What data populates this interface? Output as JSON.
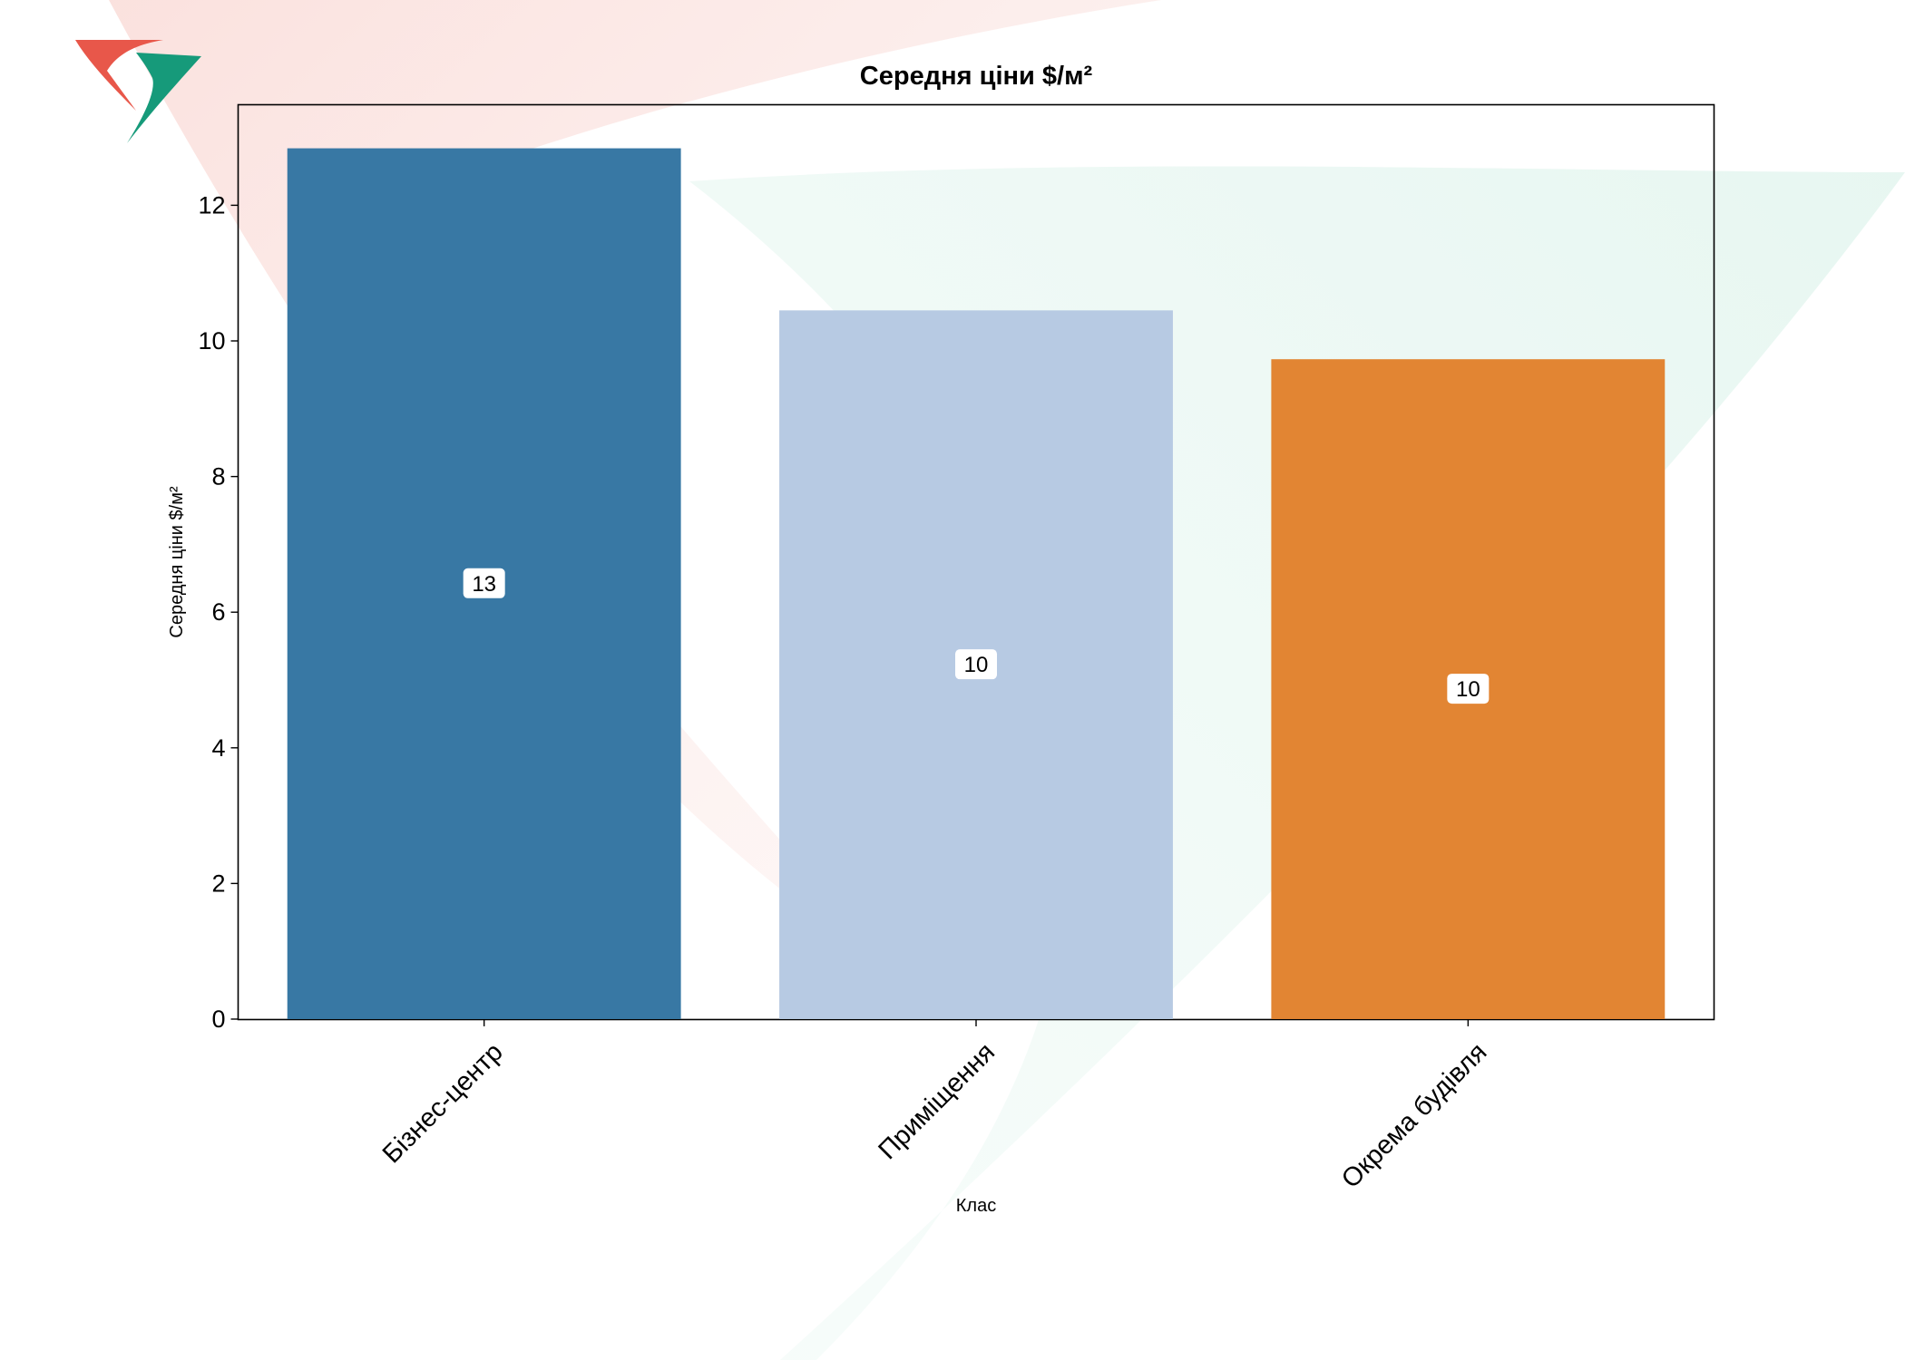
{
  "chart_data": {
    "type": "bar",
    "title": "Середня ціни $/м²",
    "xlabel": "Клас",
    "ylabel": "Середня ціни $/м²",
    "categories": [
      "Бізнес-центр",
      "Приміщення",
      "Окрема будівля"
    ],
    "values": [
      12.84,
      10.45,
      9.73
    ],
    "data_labels": [
      "13",
      "10",
      "10"
    ],
    "ylim": [
      0,
      13.5
    ],
    "yticks": [
      0,
      2,
      4,
      6,
      8,
      10,
      12
    ],
    "grid": false,
    "legend": "none",
    "colors": [
      "#3274a1",
      "#b5c8e2",
      "#e1812c"
    ]
  },
  "logo": {
    "colors": {
      "red": "#e8574a",
      "green": "#169a7a"
    }
  }
}
